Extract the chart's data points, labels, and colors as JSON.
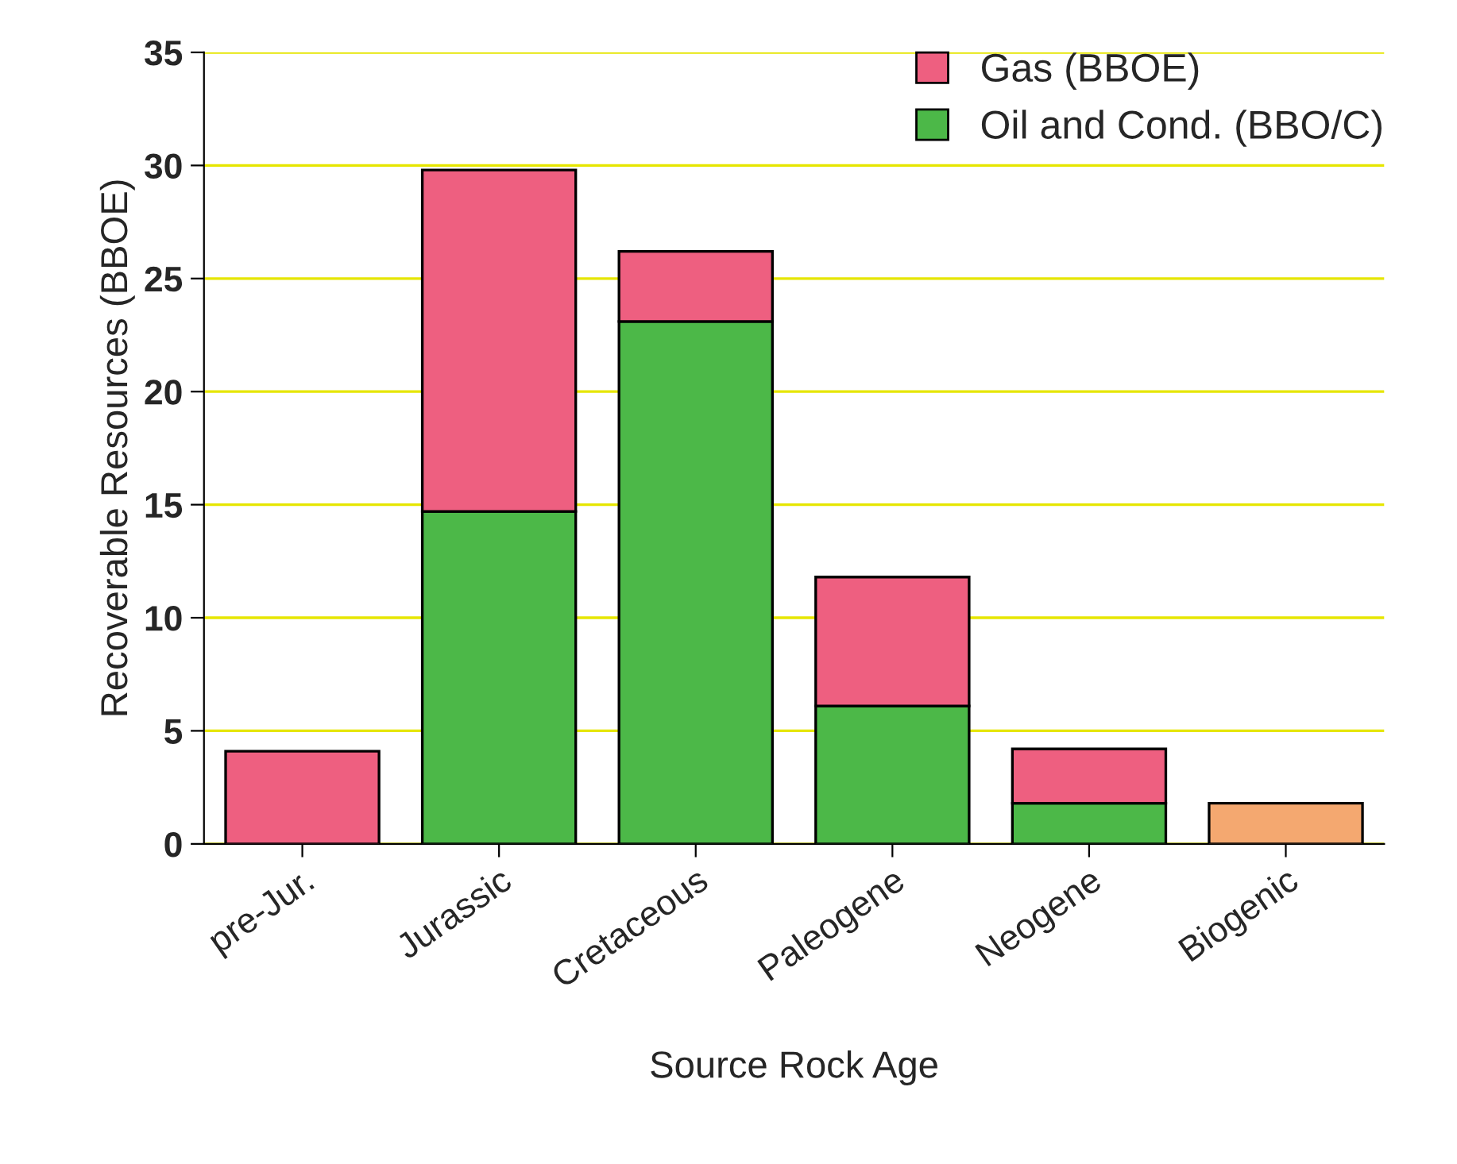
{
  "chart_data": {
    "type": "bar",
    "stacked": true,
    "xlabel": "Source Rock Age",
    "ylabel": "Recoverable Resources (BBOE)",
    "categories": [
      "pre-Jur.",
      "Jurassic",
      "Cretaceous",
      "Paleogene",
      "Neogene",
      "Biogenic"
    ],
    "series": [
      {
        "name": "Oil and Cond. (BBO/C)",
        "color": "#4cb848",
        "values": [
          0,
          14.7,
          23.1,
          6.1,
          1.8,
          0
        ]
      },
      {
        "name": "Gas (BBOE)",
        "color": "#ee5f80",
        "colors": [
          "#ee5f80",
          "#ee5f80",
          "#ee5f80",
          "#ee5f80",
          "#ee5f80",
          "#f4a870"
        ],
        "values": [
          4.1,
          15.1,
          3.1,
          5.7,
          2.4,
          1.8
        ]
      }
    ],
    "ylim": [
      0,
      35
    ],
    "yticks": [
      0,
      5,
      10,
      15,
      20,
      25,
      30,
      35
    ],
    "grid": "y",
    "legend": "top right"
  }
}
